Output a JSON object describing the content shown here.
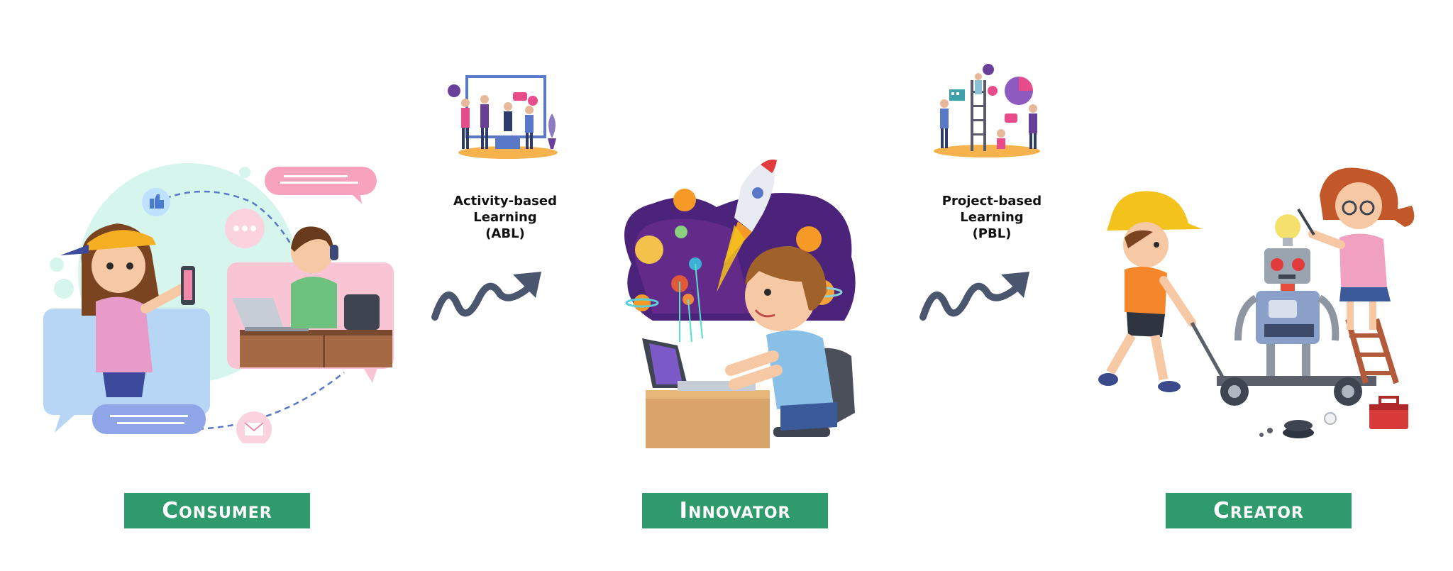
{
  "stages": [
    {
      "label": "Consumer"
    },
    {
      "label": "Innovator"
    },
    {
      "label": "Creator"
    }
  ],
  "methods": [
    {
      "line1": "Activity-based",
      "line2": "Learning",
      "line3": "(ABL)"
    },
    {
      "line1": "Project-based",
      "line2": "Learning",
      "line3": "(PBL)"
    }
  ],
  "colors": {
    "label_bg": "#2f9a6b",
    "arrow": "#4a556e",
    "accent_blue": "#5a78c8",
    "accent_pink": "#f08aa8",
    "accent_yellow": "#f4c21c"
  },
  "icons": [
    "consumer-illustration",
    "abl-team-icon",
    "arrow-icon",
    "innovator-illustration",
    "pbl-team-icon",
    "creator-illustration"
  ]
}
